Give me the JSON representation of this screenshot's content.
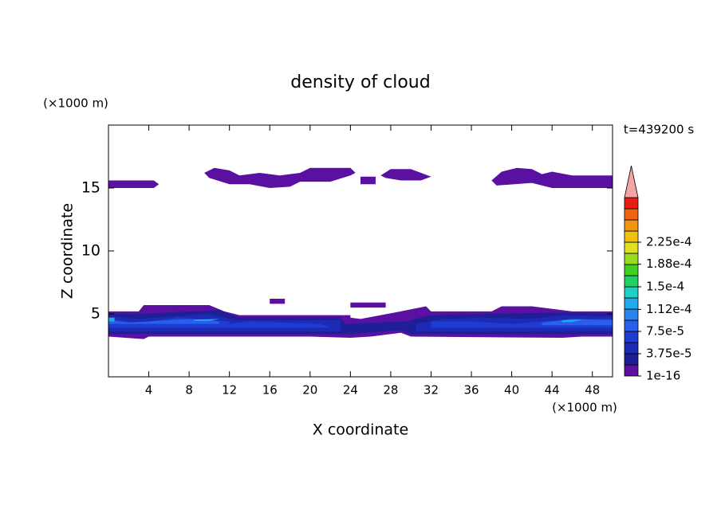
{
  "chart_data": {
    "type": "contour",
    "title": "density of cloud",
    "xlabel": "X coordinate",
    "ylabel": "Z coordinate",
    "x_unit": "(×1000 m)",
    "y_unit": "(×1000 m)",
    "time_label": "t=439200 s",
    "xlim": [
      0,
      50
    ],
    "ylim": [
      0,
      20
    ],
    "xticks": [
      4,
      8,
      12,
      16,
      20,
      24,
      28,
      32,
      36,
      40,
      44,
      48
    ],
    "yticks": [
      5,
      10,
      15
    ],
    "colorbar": {
      "lim": [
        1e-16,
        0.0003
      ],
      "colors": [
        "#5a10a0",
        "#1e1e96",
        "#1e2ab4",
        "#1e3cd2",
        "#2860ec",
        "#2a84f0",
        "#20acec",
        "#20d0c0",
        "#20d060",
        "#40d020",
        "#98dc20",
        "#e0e020",
        "#f0c014",
        "#f09614",
        "#f06414",
        "#e61e14"
      ],
      "extend_color": "#f4a4a4",
      "ticks": [
        {
          "value": 1e-16,
          "label": "1e-16"
        },
        {
          "value": 3.75e-05,
          "label": "3.75e-5"
        },
        {
          "value": 7.5e-05,
          "label": "7.5e-5"
        },
        {
          "value": 0.000112,
          "label": "1.12e-4"
        },
        {
          "value": 0.00015,
          "label": "1.5e-4"
        },
        {
          "value": 0.000188,
          "label": "1.88e-4"
        },
        {
          "value": 0.000225,
          "label": "2.25e-4"
        }
      ]
    },
    "regions": [
      {
        "value": 1e-16,
        "x": [
          0,
          4.5,
          5,
          4.5,
          0
        ],
        "z": [
          15,
          15,
          15.3,
          15.6,
          15.6
        ]
      },
      {
        "value": 1e-16,
        "x": [
          9.5,
          10.5,
          12,
          13,
          15,
          17,
          19,
          20,
          24,
          24.5,
          24,
          22,
          19,
          18,
          16,
          14,
          12,
          10
        ],
        "z": [
          16.2,
          16.6,
          16.4,
          16,
          16.2,
          16,
          16.2,
          16.6,
          16.6,
          16.2,
          16,
          15.5,
          15.5,
          15.1,
          15,
          15.3,
          15.3,
          15.8
        ]
      },
      {
        "value": 1e-16,
        "x": [
          25,
          26.5,
          26.5,
          25
        ],
        "z": [
          15.3,
          15.3,
          15.9,
          15.9
        ]
      },
      {
        "value": 1e-16,
        "x": [
          27,
          28,
          30,
          31,
          32,
          31,
          29,
          27.5
        ],
        "z": [
          16,
          16.5,
          16.5,
          16.2,
          15.9,
          15.6,
          15.6,
          15.8
        ]
      },
      {
        "value": 1e-16,
        "x": [
          38,
          39,
          40.5,
          42,
          43,
          44,
          46,
          50,
          50,
          44,
          42,
          38.5
        ],
        "z": [
          15.6,
          16.3,
          16.6,
          16.5,
          16.1,
          16.3,
          16,
          16,
          15,
          15,
          15.4,
          15.2
        ]
      },
      {
        "value": 1e-16,
        "x": [
          16,
          17.5,
          17.5,
          16
        ],
        "z": [
          5.8,
          5.8,
          6.2,
          6.2
        ]
      },
      {
        "value": 1e-16,
        "x": [
          24,
          27.5,
          27.5,
          24
        ],
        "z": [
          5.5,
          5.5,
          5.9,
          5.9
        ]
      },
      {
        "value": 1e-16,
        "x": [
          0,
          3,
          3.5,
          10,
          11.5,
          13,
          24,
          24,
          25,
          29,
          31.5,
          32,
          38,
          39,
          42,
          46,
          50,
          50,
          47,
          45,
          30,
          29,
          26,
          24,
          20,
          4,
          3.5,
          0
        ],
        "z": [
          5.2,
          5.2,
          5.7,
          5.7,
          5.2,
          4.9,
          4.9,
          4.7,
          4.6,
          5.2,
          5.6,
          5.2,
          5.2,
          5.6,
          5.6,
          5.2,
          5.2,
          3.2,
          3.2,
          3.1,
          3.2,
          3.5,
          3.2,
          3.1,
          3.2,
          3.2,
          3,
          3.2
        ]
      },
      {
        "value": 1.875e-05,
        "x": [
          0,
          3,
          11,
          13,
          23,
          23.5,
          29.5,
          32,
          38,
          45,
          50,
          50,
          30,
          29,
          24,
          0
        ],
        "z": [
          5,
          5,
          5.3,
          4.7,
          4.7,
          4.2,
          4.4,
          4.9,
          5,
          5.1,
          5,
          3.4,
          3.4,
          3.7,
          3.4,
          3.4
        ]
      },
      {
        "value": 3.75e-05,
        "x": [
          0,
          3,
          10,
          12.5,
          23,
          23,
          0
        ],
        "z": [
          4.8,
          4.6,
          5,
          4.5,
          4.5,
          3.6,
          3.6
        ]
      },
      {
        "value": 3.75e-05,
        "x": [
          30.5,
          33,
          37,
          42,
          45,
          50,
          50,
          30.5
        ],
        "z": [
          4.2,
          4.6,
          4.7,
          4.6,
          4.9,
          4.8,
          3.6,
          3.6
        ]
      },
      {
        "value": 5.625e-05,
        "x": [
          0,
          3,
          7,
          12,
          12,
          14,
          21,
          22,
          0
        ],
        "z": [
          4.6,
          4.3,
          4.7,
          4.4,
          4.2,
          4.4,
          4.2,
          3.9,
          3.9
        ]
      },
      {
        "value": 5.625e-05,
        "x": [
          32,
          36,
          40,
          43,
          47,
          50,
          50,
          32
        ],
        "z": [
          4.4,
          4.4,
          4.2,
          4.4,
          4.6,
          4.6,
          3.9,
          3.9
        ]
      },
      {
        "value": 7.5e-05,
        "x": [
          0,
          2,
          8,
          11,
          11,
          0
        ],
        "z": [
          4.5,
          4.3,
          4.6,
          4.4,
          4.2,
          4.2
        ]
      },
      {
        "value": 7.5e-05,
        "x": [
          43,
          46,
          50,
          50,
          43
        ],
        "z": [
          4.3,
          4.6,
          4.5,
          4.1,
          4.1
        ]
      },
      {
        "value": 0.0001125,
        "x": [
          0,
          0.6,
          0.6,
          0
        ],
        "z": [
          4.4,
          4.4,
          4.7,
          4.7
        ]
      },
      {
        "value": 0.0001125,
        "x": [
          8.5,
          11,
          10,
          8.5
        ],
        "z": [
          4.55,
          4.6,
          4.45,
          4.45
        ]
      },
      {
        "value": 0.0001125,
        "x": [
          45,
          47,
          46,
          45
        ],
        "z": [
          4.5,
          4.55,
          4.35,
          4.35
        ]
      }
    ]
  }
}
